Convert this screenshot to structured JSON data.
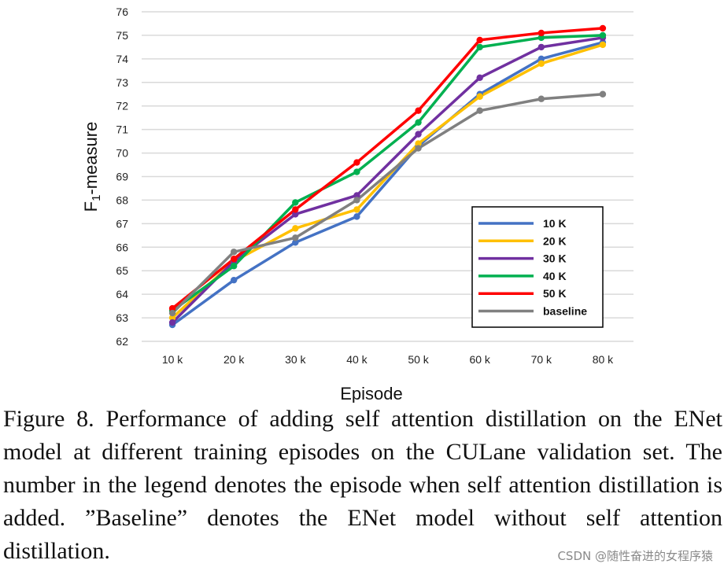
{
  "chart_data": {
    "type": "line",
    "title": "",
    "xlabel": "Episode",
    "ylabel": "F1-measure",
    "ylabel_main": "F",
    "ylabel_sub": "1",
    "ylabel_rest": "-measure",
    "categories": [
      "10 k",
      "20 k",
      "30 k",
      "40 k",
      "50 k",
      "60 k",
      "70 k",
      "80 k"
    ],
    "ylim": [
      62,
      76
    ],
    "yticks": [
      62,
      63,
      64,
      65,
      66,
      67,
      68,
      69,
      70,
      71,
      72,
      73,
      74,
      75,
      76
    ],
    "grid": true,
    "legend_position": "bottom-right",
    "series": [
      {
        "name": "10 K",
        "color": "#4472c4",
        "values": [
          62.7,
          64.6,
          66.2,
          67.3,
          70.3,
          72.5,
          74.0,
          74.7
        ]
      },
      {
        "name": "20 K",
        "color": "#ffc000",
        "values": [
          63.0,
          65.4,
          66.8,
          67.6,
          70.4,
          72.4,
          73.8,
          74.6
        ]
      },
      {
        "name": "30 K",
        "color": "#7030a0",
        "values": [
          62.8,
          65.4,
          67.4,
          68.2,
          70.8,
          73.2,
          74.5,
          74.9
        ]
      },
      {
        "name": "40 K",
        "color": "#00b050",
        "values": [
          63.3,
          65.2,
          67.9,
          69.2,
          71.3,
          74.5,
          74.9,
          75.0
        ]
      },
      {
        "name": "50 K",
        "color": "#ff0000",
        "values": [
          63.4,
          65.5,
          67.6,
          69.6,
          71.8,
          74.8,
          75.1,
          75.3
        ]
      },
      {
        "name": "baseline",
        "color": "#808080",
        "values": [
          63.2,
          65.8,
          66.4,
          68.0,
          70.2,
          71.8,
          72.3,
          72.5
        ]
      }
    ]
  },
  "caption": "Figure 8. Performance of adding self attention distillation on the ENet model at different training episodes on the CULane validation set. The number in the legend denotes the episode when self attention distillation is added. ”Baseline” denotes the ENet model without self attention distillation.",
  "watermark": "CSDN @随性奋进的女程序猿"
}
